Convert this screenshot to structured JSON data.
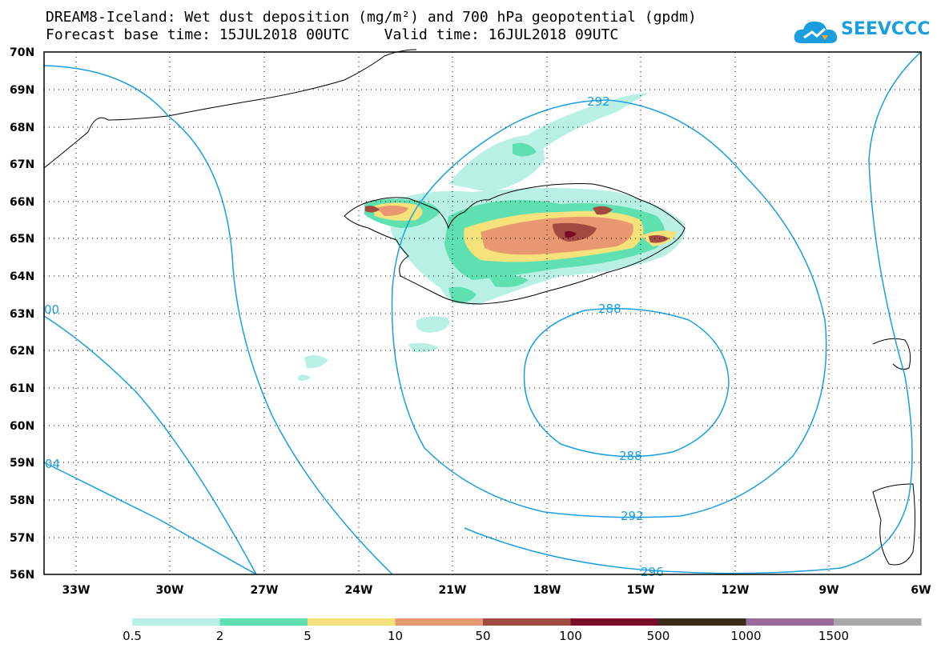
{
  "title": {
    "line1": "DREAM8-Iceland: Wet dust deposition (mg/m²) and 700 hPa geopotential (gpdm)",
    "line2": "Forecast base time: 15JUL2018 00UTC    Valid time: 16JUL2018 09UTC"
  },
  "logo": {
    "text": "SEEVCCC",
    "color": "#1a9ee0"
  },
  "axes": {
    "lon_ticks": [
      "33W",
      "30W",
      "27W",
      "24W",
      "21W",
      "18W",
      "15W",
      "12W",
      "9W",
      "6W"
    ],
    "lat_ticks": [
      "70N",
      "69N",
      "68N",
      "67N",
      "66N",
      "65N",
      "64N",
      "63N",
      "62N",
      "61N",
      "60N",
      "59N",
      "58N",
      "57N",
      "56N"
    ]
  },
  "contour_labels": [
    "292",
    "288",
    "288",
    "292",
    "296",
    "00",
    "04"
  ],
  "colorbar": {
    "labels": [
      "0.5",
      "2",
      "5",
      "10",
      "50",
      "100",
      "500",
      "1000",
      "1500"
    ],
    "colors": [
      "#b8f0e4",
      "#5ee0b0",
      "#f6e27a",
      "#e89870",
      "#a24a40",
      "#7a0a2a",
      "#3a2a1a",
      "#9a6a9a",
      "#a8a8a8"
    ]
  },
  "colors": {
    "contour": "#1a9ee0",
    "coast": "#000000"
  }
}
